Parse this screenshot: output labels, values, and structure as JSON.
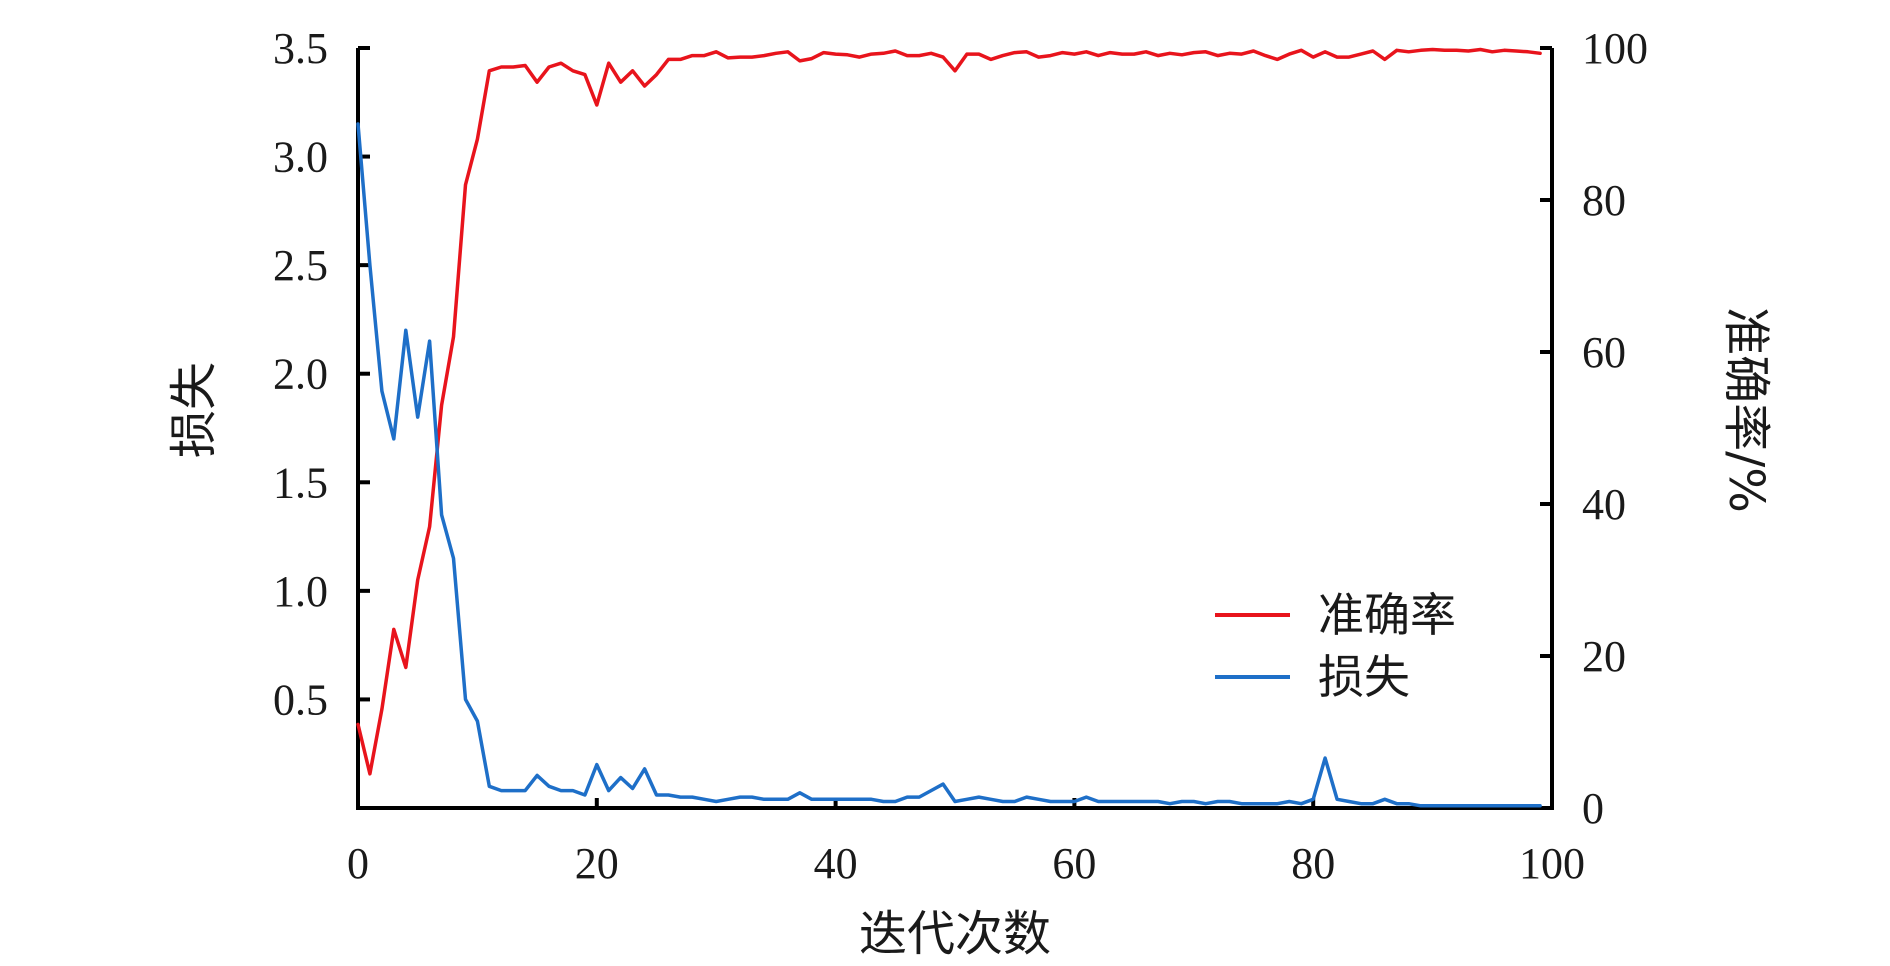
{
  "chart_data": {
    "type": "line",
    "title": "",
    "xlabel": "迭代次数",
    "ylabel_left": "损失",
    "ylabel_right": "准确率/%",
    "xlim": [
      0,
      100
    ],
    "ylim_left": [
      0,
      3.5
    ],
    "ylim_right": [
      0,
      100
    ],
    "grid": false,
    "legend": "center-right",
    "x_ticks": [
      "0",
      "20",
      "40",
      "60",
      "80",
      "100"
    ],
    "y_left_ticks": [
      "0.5",
      "1.0",
      "1.5",
      "2.0",
      "2.5",
      "3.0",
      "3.5"
    ],
    "y_right_ticks": [
      "0",
      "20",
      "40",
      "60",
      "80",
      "100"
    ],
    "series": [
      {
        "name": "准确率",
        "axis": "right",
        "color": "#e8141c",
        "x": [
          0,
          1,
          2,
          3,
          4,
          5,
          6,
          7,
          8,
          9,
          10,
          11,
          12,
          13,
          14,
          15,
          16,
          17,
          18,
          19,
          20,
          21,
          22,
          23,
          24,
          25,
          26,
          27,
          28,
          29,
          30,
          31,
          32,
          33,
          34,
          35,
          36,
          37,
          38,
          39,
          40,
          41,
          42,
          43,
          44,
          45,
          46,
          47,
          48,
          49,
          50,
          51,
          52,
          53,
          54,
          55,
          56,
          57,
          58,
          59,
          60,
          61,
          62,
          63,
          64,
          65,
          66,
          67,
          68,
          69,
          70,
          71,
          72,
          73,
          74,
          75,
          76,
          77,
          78,
          79,
          80,
          81,
          82,
          83,
          84,
          85,
          86,
          87,
          88,
          89,
          90,
          91,
          92,
          93,
          94,
          95,
          96,
          97,
          98,
          99
        ],
        "values": [
          11,
          4.5,
          13,
          23.5,
          18.5,
          30,
          37,
          53,
          62,
          82,
          88,
          97,
          97.5,
          97.5,
          97.7,
          95.5,
          97.5,
          98,
          97,
          96.5,
          92.5,
          98,
          95.5,
          97,
          95,
          96.5,
          98.5,
          98.5,
          99,
          99,
          99.5,
          98.7,
          98.8,
          98.8,
          99,
          99.3,
          99.5,
          98.3,
          98.6,
          99.4,
          99.2,
          99.1,
          98.8,
          99.2,
          99.3,
          99.6,
          99,
          99,
          99.3,
          98.8,
          97,
          99.2,
          99.2,
          98.5,
          99,
          99.4,
          99.5,
          98.8,
          99,
          99.4,
          99.2,
          99.5,
          99,
          99.4,
          99.2,
          99.2,
          99.5,
          99,
          99.3,
          99.1,
          99.4,
          99.5,
          99,
          99.3,
          99.2,
          99.6,
          99,
          98.5,
          99.2,
          99.7,
          98.8,
          99.5,
          98.8,
          98.8,
          99.2,
          99.6,
          98.5,
          99.7,
          99.5,
          99.7,
          99.8,
          99.7,
          99.7,
          99.6,
          99.8,
          99.5,
          99.7,
          99.6,
          99.5,
          99.3
        ]
      },
      {
        "name": "损失",
        "axis": "left",
        "color": "#1e6fc8",
        "x": [
          0,
          1,
          2,
          3,
          4,
          5,
          6,
          7,
          8,
          9,
          10,
          11,
          12,
          13,
          14,
          15,
          16,
          17,
          18,
          19,
          20,
          21,
          22,
          23,
          24,
          25,
          26,
          27,
          28,
          29,
          30,
          31,
          32,
          33,
          34,
          35,
          36,
          37,
          38,
          39,
          40,
          41,
          42,
          43,
          44,
          45,
          46,
          47,
          48,
          49,
          50,
          51,
          52,
          53,
          54,
          55,
          56,
          57,
          58,
          59,
          60,
          61,
          62,
          63,
          64,
          65,
          66,
          67,
          68,
          69,
          70,
          71,
          72,
          73,
          74,
          75,
          76,
          77,
          78,
          79,
          80,
          81,
          82,
          83,
          84,
          85,
          86,
          87,
          88,
          89,
          90,
          91,
          92,
          93,
          94,
          95,
          96,
          97,
          98,
          99
        ],
        "values": [
          3.15,
          2.5,
          1.92,
          1.7,
          2.2,
          1.8,
          2.15,
          1.35,
          1.15,
          0.5,
          0.4,
          0.1,
          0.08,
          0.08,
          0.08,
          0.15,
          0.1,
          0.08,
          0.08,
          0.06,
          0.2,
          0.08,
          0.14,
          0.09,
          0.18,
          0.06,
          0.06,
          0.05,
          0.05,
          0.04,
          0.03,
          0.04,
          0.05,
          0.05,
          0.04,
          0.04,
          0.04,
          0.07,
          0.04,
          0.04,
          0.04,
          0.04,
          0.04,
          0.04,
          0.03,
          0.03,
          0.05,
          0.05,
          0.08,
          0.11,
          0.03,
          0.04,
          0.05,
          0.04,
          0.03,
          0.03,
          0.05,
          0.04,
          0.03,
          0.03,
          0.03,
          0.05,
          0.03,
          0.03,
          0.03,
          0.03,
          0.03,
          0.03,
          0.02,
          0.03,
          0.03,
          0.02,
          0.03,
          0.03,
          0.02,
          0.02,
          0.02,
          0.02,
          0.03,
          0.02,
          0.04,
          0.23,
          0.04,
          0.03,
          0.02,
          0.02,
          0.04,
          0.02,
          0.02,
          0.01,
          0.01,
          0.01,
          0.01,
          0.01,
          0.01,
          0.01,
          0.01,
          0.01,
          0.01,
          0.01
        ]
      }
    ]
  }
}
